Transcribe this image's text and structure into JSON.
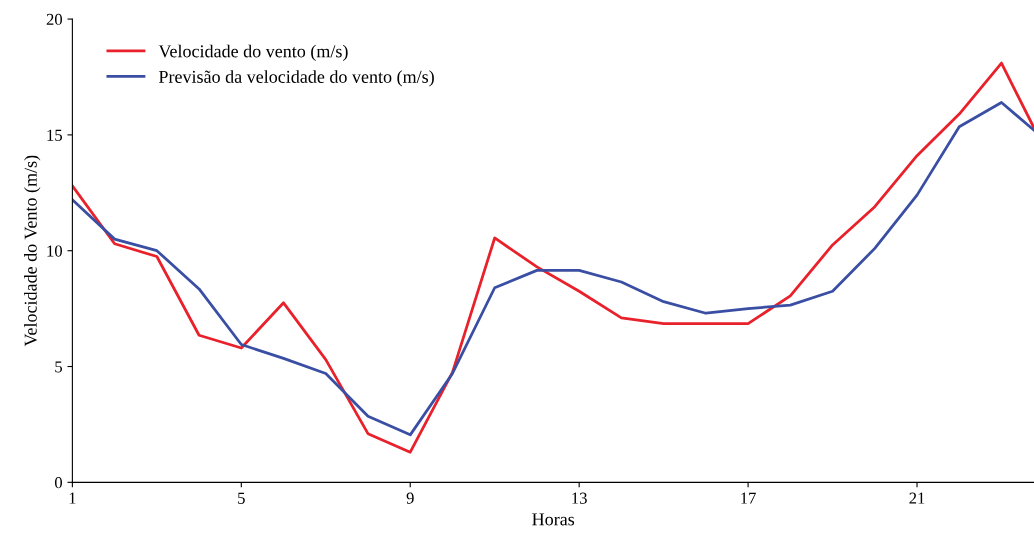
{
  "chart_data": {
    "type": "line",
    "xlabel": "Horas",
    "ylabel": "Velocidade do Vento (m/s)",
    "x": [
      1,
      2,
      3,
      4,
      5,
      6,
      7,
      8,
      9,
      10,
      11,
      12,
      13,
      14,
      15,
      16,
      17,
      18,
      19,
      20,
      21,
      22,
      23,
      23.77
    ],
    "series": [
      {
        "name": "Velocidade do vento (m/s)",
        "color": "#e8212b",
        "values": [
          12.8,
          10.3,
          9.75,
          6.35,
          5.8,
          7.75,
          5.3,
          2.1,
          1.3,
          4.75,
          10.55,
          9.3,
          8.25,
          7.1,
          6.85,
          6.85,
          6.85,
          8.05,
          10.25,
          11.9,
          14.1,
          15.9,
          18.1,
          15.3
        ]
      },
      {
        "name": "Previsão da velocidade do vento (m/s)",
        "color": "#3a4fa3",
        "values": [
          12.2,
          10.5,
          10.0,
          8.35,
          5.95,
          5.35,
          4.7,
          2.85,
          2.05,
          4.7,
          8.4,
          9.15,
          9.15,
          8.65,
          7.8,
          7.3,
          7.5,
          7.65,
          8.25,
          10.1,
          12.4,
          15.35,
          16.4,
          15.2
        ]
      }
    ],
    "xlim": [
      1,
      23.77
    ],
    "xticks": [
      1,
      5,
      9,
      13,
      17,
      21
    ],
    "ylim": [
      0,
      20
    ],
    "yticks": [
      0,
      5,
      10,
      15,
      20
    ],
    "grid": false,
    "legend": "top left",
    "marker": "none",
    "line_style": "solid"
  }
}
